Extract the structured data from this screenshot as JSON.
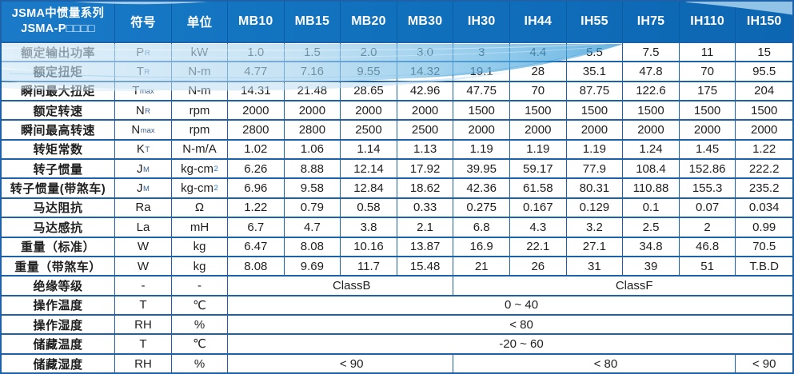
{
  "table": {
    "header": {
      "title_line1": "JSMA中惯量系列",
      "title_line2": "JSMA-P□□□□",
      "symbol": "符号",
      "unit": "单位",
      "models": [
        "MB10",
        "MB15",
        "MB20",
        "MB30",
        "IH30",
        "IH44",
        "IH55",
        "IH75",
        "IH110",
        "IH150"
      ]
    },
    "rows": [
      {
        "label": "额定输出功率",
        "sym": "P",
        "sub": "R",
        "unit": "kW",
        "values": [
          "1.0",
          "1.5",
          "2.0",
          "3.0",
          "3",
          "4.4",
          "5.5",
          "7.5",
          "11",
          "15"
        ]
      },
      {
        "label": "额定扭矩",
        "sym": "T",
        "sub": "R",
        "unit": "N-m",
        "values": [
          "4.77",
          "7.16",
          "9.55",
          "14.32",
          "19.1",
          "28",
          "35.1",
          "47.8",
          "70",
          "95.5"
        ]
      },
      {
        "label": "瞬间最大扭矩",
        "sym": "T",
        "sub": "max",
        "unit": "N-m",
        "values": [
          "14.31",
          "21.48",
          "28.65",
          "42.96",
          "47.75",
          "70",
          "87.75",
          "122.6",
          "175",
          "204"
        ]
      },
      {
        "label": "额定转速",
        "sym": "N",
        "sub": "R",
        "unit": "rpm",
        "values": [
          "2000",
          "2000",
          "2000",
          "2000",
          "1500",
          "1500",
          "1500",
          "1500",
          "1500",
          "1500"
        ]
      },
      {
        "label": "瞬间最高转速",
        "sym": "N",
        "sub": "max",
        "unit": "rpm",
        "values": [
          "2800",
          "2800",
          "2500",
          "2500",
          "2000",
          "2000",
          "2000",
          "2000",
          "2000",
          "2000"
        ]
      },
      {
        "label": "转矩常数",
        "sym": "K",
        "sub": "T",
        "unit": "N-m/A",
        "values": [
          "1.02",
          "1.06",
          "1.14",
          "1.13",
          "1.19",
          "1.19",
          "1.19",
          "1.24",
          "1.45",
          "1.22"
        ]
      },
      {
        "label": "转子惯量",
        "sym": "J",
        "sub": "M",
        "unit": "kg-cm",
        "unit_sup": "2",
        "values": [
          "6.26",
          "8.88",
          "12.14",
          "17.92",
          "39.95",
          "59.17",
          "77.9",
          "108.4",
          "152.86",
          "222.2"
        ]
      },
      {
        "label": "转子惯量(带煞车)",
        "sym": "J",
        "sub": "M",
        "unit": "kg-cm",
        "unit_sup": "2",
        "values": [
          "6.96",
          "9.58",
          "12.84",
          "18.62",
          "42.36",
          "61.58",
          "80.31",
          "110.88",
          "155.3",
          "235.2"
        ]
      },
      {
        "label": "马达阻抗",
        "sym": "Ra",
        "unit": "Ω",
        "values": [
          "1.22",
          "0.79",
          "0.58",
          "0.33",
          "0.275",
          "0.167",
          "0.129",
          "0.1",
          "0.07",
          "0.034"
        ]
      },
      {
        "label": "马达感抗",
        "sym": "La",
        "unit": "mH",
        "values": [
          "6.7",
          "4.7",
          "3.8",
          "2.1",
          "6.8",
          "4.3",
          "3.2",
          "2.5",
          "2",
          "0.99"
        ]
      },
      {
        "label": "重量（标准）",
        "sym": "W",
        "unit": "kg",
        "values": [
          "6.47",
          "8.08",
          "10.16",
          "13.87",
          "16.9",
          "22.1",
          "27.1",
          "34.8",
          "46.8",
          "70.5"
        ]
      },
      {
        "label": "重量（带煞车）",
        "sym": "W",
        "unit": "kg",
        "values": [
          "8.08",
          "9.69",
          "11.7",
          "15.48",
          "21",
          "26",
          "31",
          "39",
          "51",
          "T.B.D"
        ]
      },
      {
        "label": "绝缘等级",
        "sym": "-",
        "unit": "-",
        "merged": [
          {
            "text": "ClassB",
            "span": 4
          },
          {
            "text": "ClassF",
            "span": 6
          }
        ]
      },
      {
        "label": "操作温度",
        "sym": "T",
        "unit": "℃",
        "merged": [
          {
            "text": "0 ~ 40",
            "span": 10
          }
        ]
      },
      {
        "label": "操作湿度",
        "sym": "RH",
        "unit": "%",
        "merged": [
          {
            "text": "< 80",
            "span": 10
          }
        ]
      },
      {
        "label": "储藏温度",
        "sym": "T",
        "unit": "℃",
        "merged": [
          {
            "text": "-20 ~ 60",
            "span": 10
          }
        ]
      },
      {
        "label": "储藏湿度",
        "sym": "RH",
        "unit": "%",
        "merged": [
          {
            "text": "< 90",
            "span": 4
          },
          {
            "text": "< 80",
            "span": 5
          },
          {
            "text": "< 90",
            "span": 1
          }
        ]
      }
    ]
  },
  "colors": {
    "header_bg": "#1273bf",
    "border": "#1d61a9",
    "wave_light": "#cfe7f7",
    "wave_mid": "#a8d4ee",
    "wave_dark": "#2f97d6",
    "text": "#1f1f1f",
    "header_text": "#ffffff"
  }
}
